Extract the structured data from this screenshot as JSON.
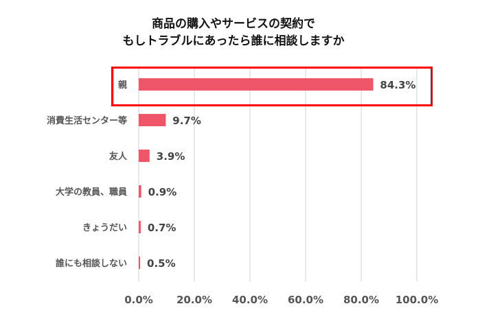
{
  "chart_data": {
    "type": "bar",
    "orientation": "horizontal",
    "title": [
      "商品の購入やサービスの契約で",
      "もしトラブルにあったら誰に相談しますか"
    ],
    "categories": [
      "親",
      "消費生活センター等",
      "友人",
      "大学の教員、職員",
      "きょうだい",
      "誰にも相談しない"
    ],
    "values": [
      84.3,
      9.7,
      3.9,
      0.9,
      0.7,
      0.5
    ],
    "data_labels": [
      "84.3%",
      "9.7%",
      "3.9%",
      "0.9%",
      "0.7%",
      "0.5%"
    ],
    "xlim": [
      0,
      100
    ],
    "xticks": [
      "0.0%",
      "20.0%",
      "40.0%",
      "60.0%",
      "80.0%",
      "100.0%"
    ],
    "grid": true,
    "highlighted_category": "親",
    "colors": {
      "bar": "#f0566a",
      "highlight_box": "#ff0000",
      "grid": "#d0d0d0"
    }
  }
}
